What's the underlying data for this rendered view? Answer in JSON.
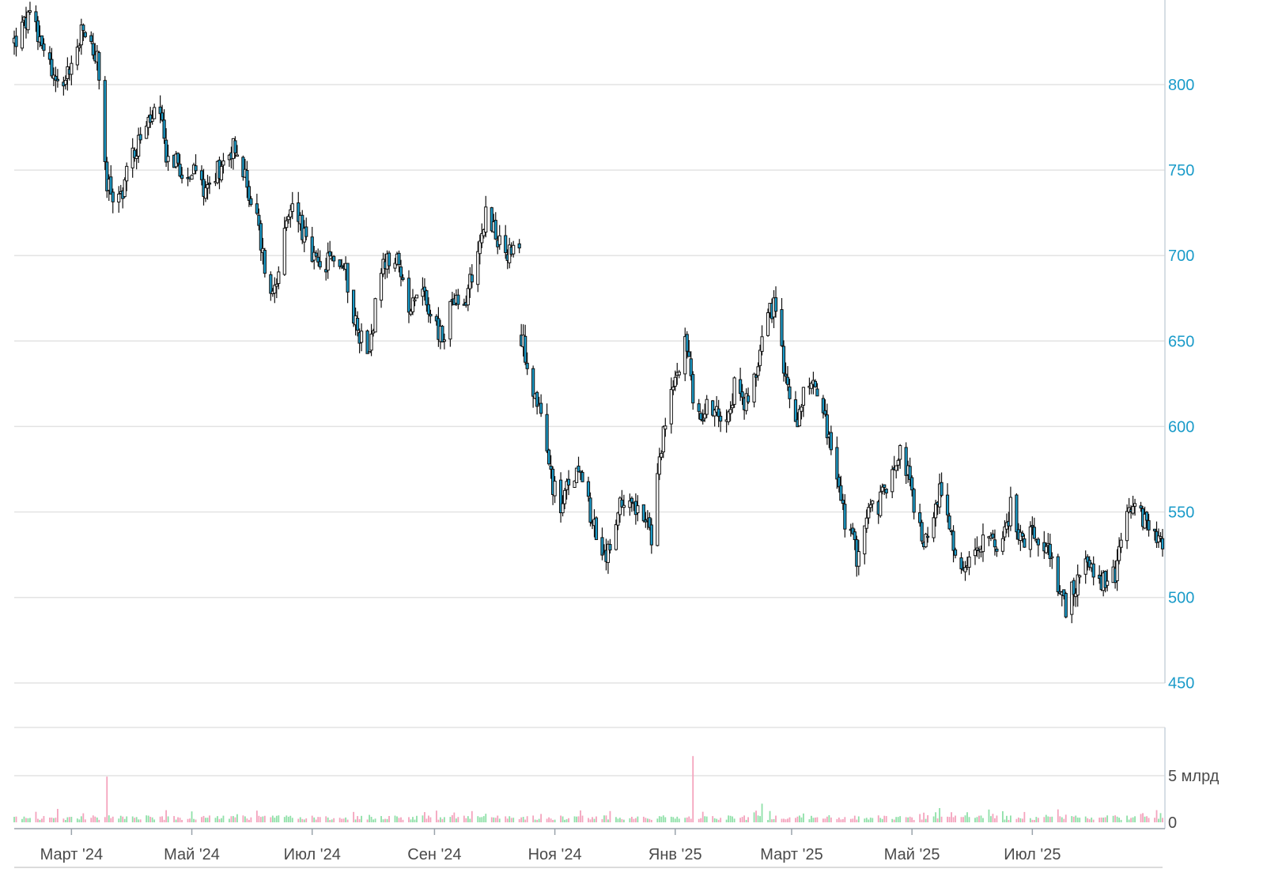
{
  "chart_data": {
    "type": "candlestick",
    "title": "",
    "xlabel": "",
    "ylabel": "",
    "x_tick_labels": [
      "Март '24",
      "Май '24",
      "Июл '24",
      "Сен '24",
      "Ноя '24",
      "Янв '25",
      "Март '25",
      "Май '25",
      "Июл '25"
    ],
    "y_ticks": [
      450,
      500,
      550,
      600,
      650,
      700,
      750,
      800
    ],
    "ylim": [
      450,
      850
    ],
    "grid": true,
    "y_axis_side": "right",
    "volume_panel": {
      "tick_labels": [
        "5 млрд",
        "0"
      ],
      "tick_values": [
        5,
        0
      ],
      "unit": "млрд",
      "ylim": [
        0,
        9
      ]
    },
    "colors": {
      "up_fill": "#ffffff",
      "down_fill": "#1a9bc9",
      "candle_outline": "#111111",
      "volume_up": "#8fe0a8",
      "volume_down": "#f4a3bd",
      "grid": "#e3e3e3",
      "price_axis_text": "#1a9bc9",
      "axis_text": "#4a4a4a"
    },
    "price_path": [
      [
        "2024-02-01",
        825
      ],
      [
        "2024-02-08",
        838
      ],
      [
        "2024-02-15",
        828
      ],
      [
        "2024-02-22",
        800
      ],
      [
        "2024-03-01",
        810
      ],
      [
        "2024-03-07",
        832
      ],
      [
        "2024-03-14",
        815
      ],
      [
        "2024-03-19",
        740
      ],
      [
        "2024-03-25",
        732
      ],
      [
        "2024-04-01",
        760
      ],
      [
        "2024-04-08",
        775
      ],
      [
        "2024-04-14",
        785
      ],
      [
        "2024-04-18",
        760
      ],
      [
        "2024-04-25",
        752
      ],
      [
        "2024-05-01",
        748
      ],
      [
        "2024-05-08",
        740
      ],
      [
        "2024-05-15",
        752
      ],
      [
        "2024-05-22",
        765
      ],
      [
        "2024-05-28",
        745
      ],
      [
        "2024-06-03",
        720
      ],
      [
        "2024-06-10",
        675
      ],
      [
        "2024-06-15",
        700
      ],
      [
        "2024-06-22",
        735
      ],
      [
        "2024-06-28",
        705
      ],
      [
        "2024-07-05",
        690
      ],
      [
        "2024-07-12",
        700
      ],
      [
        "2024-07-18",
        690
      ],
      [
        "2024-07-24",
        655
      ],
      [
        "2024-07-30",
        648
      ],
      [
        "2024-08-05",
        690
      ],
      [
        "2024-08-12",
        700
      ],
      [
        "2024-08-18",
        670
      ],
      [
        "2024-08-25",
        685
      ],
      [
        "2024-09-01",
        660
      ],
      [
        "2024-09-05",
        650
      ],
      [
        "2024-09-10",
        675
      ],
      [
        "2024-09-15",
        665
      ],
      [
        "2024-09-22",
        700
      ],
      [
        "2024-09-28",
        728
      ],
      [
        "2024-10-04",
        705
      ],
      [
        "2024-10-10",
        700
      ],
      [
        "2024-10-14",
        698
      ],
      [
        "2024-10-15",
        652
      ],
      [
        "2024-10-20",
        630
      ],
      [
        "2024-10-27",
        590
      ],
      [
        "2024-11-03",
        550
      ],
      [
        "2024-11-08",
        565
      ],
      [
        "2024-11-14",
        580
      ],
      [
        "2024-11-20",
        545
      ],
      [
        "2024-11-26",
        520
      ],
      [
        "2024-12-02",
        545
      ],
      [
        "2024-12-08",
        565
      ],
      [
        "2024-12-14",
        550
      ],
      [
        "2024-12-20",
        535
      ],
      [
        "2024-12-25",
        590
      ],
      [
        "2025-01-01",
        628
      ],
      [
        "2025-01-06",
        655
      ],
      [
        "2025-01-12",
        600
      ],
      [
        "2025-01-18",
        615
      ],
      [
        "2025-01-25",
        605
      ],
      [
        "2025-02-01",
        625
      ],
      [
        "2025-02-08",
        608
      ],
      [
        "2025-02-14",
        658
      ],
      [
        "2025-02-20",
        672
      ],
      [
        "2025-02-26",
        625
      ],
      [
        "2025-03-04",
        605
      ],
      [
        "2025-03-10",
        630
      ],
      [
        "2025-03-16",
        615
      ],
      [
        "2025-03-22",
        580
      ],
      [
        "2025-03-28",
        545
      ],
      [
        "2025-04-03",
        525
      ],
      [
        "2025-04-09",
        550
      ],
      [
        "2025-04-15",
        555
      ],
      [
        "2025-04-21",
        580
      ],
      [
        "2025-04-27",
        585
      ],
      [
        "2025-05-03",
        545
      ],
      [
        "2025-05-09",
        530
      ],
      [
        "2025-05-15",
        560
      ],
      [
        "2025-05-21",
        535
      ],
      [
        "2025-05-27",
        510
      ],
      [
        "2025-06-02",
        525
      ],
      [
        "2025-06-08",
        545
      ],
      [
        "2025-06-14",
        515
      ],
      [
        "2025-06-20",
        555
      ],
      [
        "2025-06-26",
        530
      ],
      [
        "2025-07-02",
        540
      ],
      [
        "2025-07-09",
        530
      ],
      [
        "2025-07-13",
        505
      ],
      [
        "2025-07-18",
        495
      ],
      [
        "2025-07-24",
        510
      ],
      [
        "2025-07-30",
        522
      ],
      [
        "2025-08-05",
        508
      ],
      [
        "2025-08-12",
        512
      ],
      [
        "2025-08-18",
        545
      ],
      [
        "2025-08-24",
        550
      ],
      [
        "2025-08-30",
        535
      ],
      [
        "2025-09-04",
        530
      ]
    ],
    "gaps": [
      [
        "2024-10-14",
        "2024-10-15"
      ],
      [
        "2025-07-09",
        "2025-07-13"
      ]
    ],
    "volume_spikes": [
      [
        "2024-03-19",
        4.9
      ],
      [
        "2025-01-10",
        7.1
      ],
      [
        "2024-06-15",
        2.3
      ],
      [
        "2025-02-14",
        2.0
      ],
      [
        "2024-09-28",
        2.1
      ]
    ]
  }
}
